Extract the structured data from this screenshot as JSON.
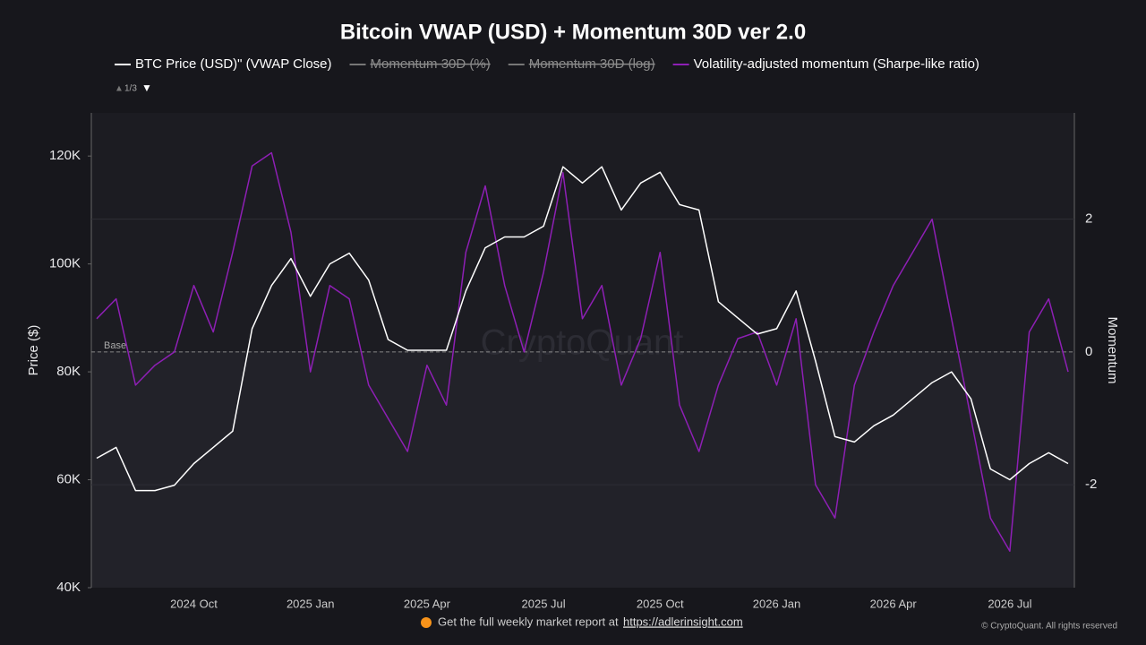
{
  "chart_data": {
    "type": "line",
    "title": "Bitcoin VWAP (USD) + Momentum 30D ver 2.0",
    "y_label": "Price ($)",
    "y2_label": "Momentum",
    "watermark": "CryptoQuant",
    "legend_pager": "1/3",
    "base_line": {
      "label": "Base",
      "value": 0
    },
    "categories": [
      null,
      null,
      null,
      null,
      null,
      "2024 Oct",
      null,
      null,
      null,
      null,
      null,
      "2025 Jan",
      null,
      null,
      null,
      null,
      null,
      "2025 Apr",
      null,
      null,
      null,
      null,
      null,
      "2025 Jul",
      null,
      null,
      null,
      null,
      null,
      "2025 Oct",
      null,
      null,
      null,
      null,
      null,
      "2026 Jan",
      null,
      null,
      null,
      null,
      null,
      "2026 Apr",
      null,
      null,
      null,
      null,
      null,
      "2026 Jul",
      null,
      null,
      null
    ],
    "ylim": [
      40000,
      128000
    ],
    "yticks": [
      {
        "value": 40000,
        "label": "40K"
      },
      {
        "value": 60000,
        "label": "60K"
      },
      {
        "value": 80000,
        "label": "80K"
      },
      {
        "value": 100000,
        "label": "100K"
      },
      {
        "value": 120000,
        "label": "120K"
      }
    ],
    "y2lim": [
      -3.55,
      3.6
    ],
    "y2ticks": [
      -2,
      0,
      2
    ],
    "grid": true,
    "series": [
      {
        "name": "BTC Price (USD)\" (VWAP Close)",
        "color": "#ffffff",
        "visible": true,
        "values": [
          64000,
          66000,
          58000,
          58000,
          59000,
          63000,
          66000,
          69000,
          88000,
          96000,
          101000,
          94000,
          100000,
          102000,
          97000,
          86000,
          84000,
          84000,
          84000,
          95000,
          103000,
          105000,
          105000,
          107000,
          118000,
          115000,
          118000,
          110000,
          115000,
          117000,
          111000,
          110000,
          93000,
          90000,
          87000,
          88000,
          95000,
          82000,
          68000,
          67000,
          70000,
          72000,
          75000,
          78000,
          80000,
          75000,
          62000,
          60000,
          63000,
          65000,
          63000
        ]
      },
      {
        "name": "Momentum 30D (%)",
        "color": "#8a8a8a",
        "visible": false
      },
      {
        "name": "Momentum 30D (log)",
        "color": "#8a8a8a",
        "visible": false
      },
      {
        "name": "Volatility-adjusted momentum (Sharpe-like ratio)",
        "color": "#8e1fb5",
        "visible": true,
        "axis": "y2",
        "values": [
          0.5,
          0.8,
          -0.5,
          -0.2,
          0.0,
          1.0,
          0.3,
          1.5,
          2.8,
          3.0,
          1.8,
          -0.3,
          1.0,
          0.8,
          -0.5,
          -1.0,
          -1.5,
          -0.2,
          -0.8,
          1.5,
          2.5,
          1.0,
          0.0,
          1.2,
          2.7,
          0.5,
          1.0,
          -0.5,
          0.2,
          1.5,
          -0.8,
          -1.5,
          -0.5,
          0.2,
          0.3,
          -0.5,
          0.5,
          -2.0,
          -2.5,
          -0.5,
          0.3,
          1.0,
          1.5,
          2.0,
          0.5,
          -1.0,
          -2.5,
          -3.0,
          0.3,
          0.8,
          -0.3
        ]
      }
    ]
  },
  "footer": {
    "text": "Get the full weekly market report at",
    "link": "https://adlerinsight.com",
    "copyright": "© CryptoQuant. All rights reserved"
  }
}
